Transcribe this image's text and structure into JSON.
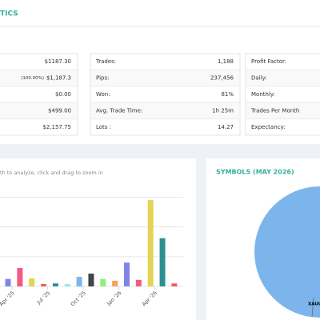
{
  "header": {
    "title": "TICS"
  },
  "stats": {
    "cards": [
      {
        "rows": [
          {
            "value": "$1187.30"
          },
          {
            "note": "(100.00%)",
            "value": "$1,187.3"
          },
          {
            "value": "$0.00"
          },
          {
            "value": "$499.00"
          },
          {
            "value": "$2,157.75"
          }
        ]
      },
      {
        "rows": [
          {
            "label": "Trades:",
            "value": "1,188"
          },
          {
            "label": "Pips:",
            "value": "237,456"
          },
          {
            "label": "Won:",
            "value": "81%"
          },
          {
            "label": "Avg. Trade Time:",
            "value": "1h 25m"
          },
          {
            "label": "Lots :",
            "value": "14.27"
          }
        ]
      },
      {
        "rows": [
          {
            "label": "Profit Factor:"
          },
          {
            "label": "Daily:"
          },
          {
            "label": "Monthly:"
          },
          {
            "label": "Trades Per Month"
          },
          {
            "label": "Expectancy:"
          }
        ]
      }
    ]
  },
  "chart_data": [
    {
      "type": "bar",
      "subtitle": "th to analyze, click and drag to zoom in",
      "categories": [
        "Apr '25",
        null,
        null,
        "Jul '25",
        null,
        null,
        "Oct '25",
        null,
        null,
        "Jan '26",
        null,
        null,
        "Apr '26",
        null,
        null
      ],
      "values": [
        0.25,
        0.62,
        0.27,
        0.08,
        0.1,
        0.08,
        0.32,
        0.43,
        0.25,
        0.19,
        0.8,
        0.22,
        2.9,
        1.62,
        0.1
      ],
      "colors": [
        "#8085e9",
        "#f15c80",
        "#e4d354",
        "#f45b5b",
        "#2b908f",
        "#91e8e1",
        "#7cb5ec",
        "#434348",
        "#90ed7d",
        "#f7a35c",
        "#8085e9",
        "#f15c80",
        "#e4d354",
        "#2b908f",
        "#f45b5b"
      ],
      "ylim": [
        0,
        3.2
      ],
      "yticks": [
        0,
        1,
        2,
        3
      ],
      "grid": true
    },
    {
      "type": "pie",
      "title": "SYMBOLS (MAY 2026)",
      "categories": [
        "XAUU"
      ],
      "values": [
        100
      ],
      "colors": [
        "#7cb5ec"
      ]
    }
  ]
}
